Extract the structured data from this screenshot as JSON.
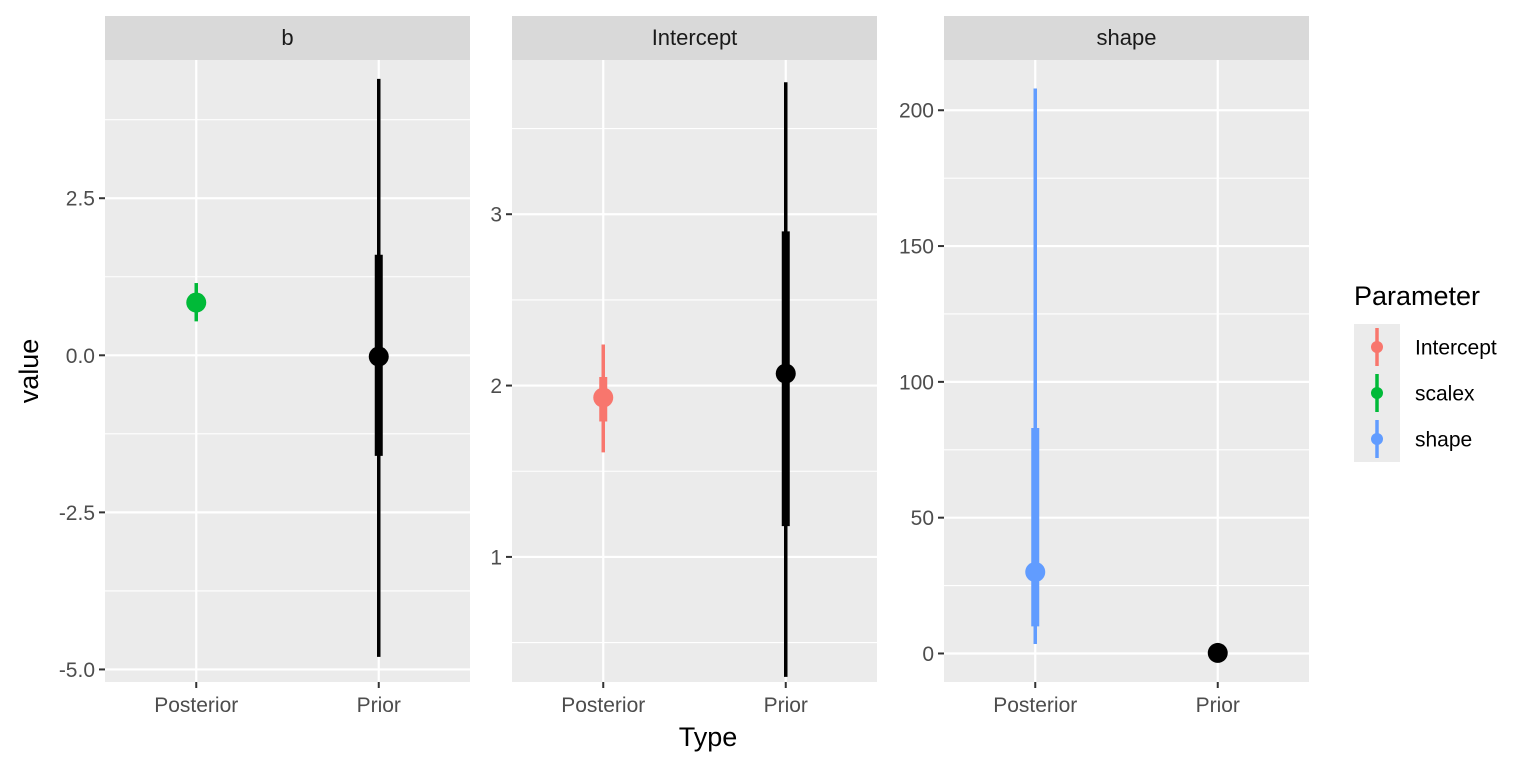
{
  "chart_data": {
    "type": "pointrange",
    "xlabel": "Type",
    "ylabel": "value",
    "categories": [
      "Posterior",
      "Prior"
    ],
    "legend": {
      "title": "Parameter",
      "position": "right",
      "entries": [
        {
          "name": "Intercept",
          "color": "#F8766D"
        },
        {
          "name": "scalex",
          "color": "#00BA38"
        },
        {
          "name": "shape",
          "color": "#619CFF"
        }
      ]
    },
    "panels": [
      {
        "strip": "b",
        "ylim": [
          -5.2,
          4.7
        ],
        "ticks": [
          -5.0,
          -2.5,
          0.0,
          2.5
        ],
        "tick_labels": [
          "-5.0",
          "-2.5",
          "0.0",
          "2.5"
        ],
        "minor_ticks": [
          -3.75,
          -1.25,
          1.25,
          3.75
        ],
        "points": [
          {
            "type": "Posterior",
            "parameter": "scalex",
            "color": "#00BA38",
            "median": 0.84,
            "inner": [
              0.72,
              0.96
            ],
            "outer": [
              0.54,
              1.15
            ]
          },
          {
            "type": "Prior",
            "parameter": "",
            "color": "#000000",
            "median": -0.02,
            "inner": [
              -1.6,
              1.6
            ],
            "outer": [
              -4.8,
              4.4
            ]
          }
        ]
      },
      {
        "strip": "Intercept",
        "ylim": [
          0.27,
          3.9
        ],
        "ticks": [
          1,
          2,
          3
        ],
        "tick_labels": [
          "1",
          "2",
          "3"
        ],
        "minor_ticks": [
          0.5,
          1.5,
          2.5,
          3.5
        ],
        "points": [
          {
            "type": "Posterior",
            "parameter": "Intercept",
            "color": "#F8766D",
            "median": 1.93,
            "inner": [
              1.79,
              2.05
            ],
            "outer": [
              1.61,
              2.24
            ]
          },
          {
            "type": "Prior",
            "parameter": "",
            "color": "#000000",
            "median": 2.07,
            "inner": [
              1.18,
              2.9
            ],
            "outer": [
              0.3,
              3.77
            ]
          }
        ]
      },
      {
        "strip": "shape",
        "ylim": [
          -10.5,
          218.5
        ],
        "ticks": [
          0,
          50,
          100,
          150,
          200
        ],
        "tick_labels": [
          "0",
          "50",
          "100",
          "150",
          "200"
        ],
        "minor_ticks": [
          25,
          75,
          125,
          175
        ],
        "points": [
          {
            "type": "Posterior",
            "parameter": "shape",
            "color": "#619CFF",
            "median": 30,
            "inner": [
              10,
              83
            ],
            "outer": [
              3.5,
              208
            ]
          },
          {
            "type": "Prior",
            "parameter": "",
            "color": "#000000",
            "median": 0.2,
            "inner": [
              0,
              0.5
            ],
            "outer": [
              0,
              1
            ]
          }
        ]
      }
    ]
  }
}
